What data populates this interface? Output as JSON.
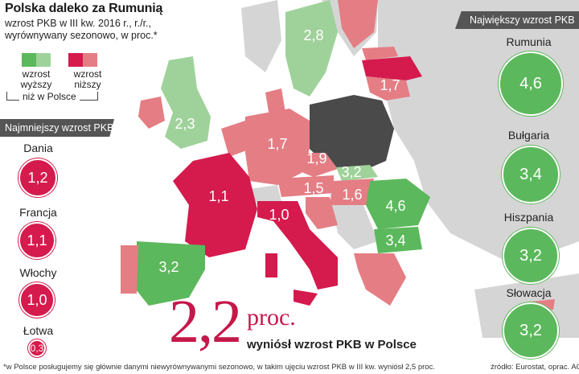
{
  "title": "Polska daleko za Rumunią",
  "subtitle": "wzrost PKB w III kw. 2016 r., r./r., wyrównywany sezonowo, w proc.*",
  "legend": {
    "higher": "wzrost wyższy",
    "lower": "wzrost niższy",
    "caption": "niż w Polsce",
    "colors": {
      "higher_dark": "#5cb85c",
      "higher_light": "#9fd29a",
      "lower_dark": "#d51a4d",
      "lower_light": "#e57d84",
      "poland": "#4a4a4a"
    }
  },
  "smallest": {
    "heading": "Najmniejszy wzrost PKB",
    "items": [
      {
        "country": "Dania",
        "value": "1,2"
      },
      {
        "country": "Francja",
        "value": "1,1"
      },
      {
        "country": "Włochy",
        "value": "1,0"
      },
      {
        "country": "Łotwa",
        "value": "0,3"
      }
    ]
  },
  "largest": {
    "heading": "Największy wzrost PKB",
    "items": [
      {
        "country": "Rumunia",
        "value": "4,6"
      },
      {
        "country": "Bułgaria",
        "value": "3,4"
      },
      {
        "country": "Hiszpania",
        "value": "3,2"
      },
      {
        "country": "Słowacja",
        "value": "3,2"
      }
    ]
  },
  "map_labels": {
    "sweden": "2,8",
    "uk": "2,3",
    "germany": "1,7",
    "czechia": "1,9",
    "austria": "1,5",
    "slovakia": "3,2",
    "hungary": "1,6",
    "france": "1,1",
    "italy": "1,0",
    "spain": "3,2",
    "romania": "4,6",
    "bulgaria": "3,4",
    "lithuania": "1,7"
  },
  "poland": {
    "value": "2,2",
    "unit": "proc.",
    "description": "wyniósł wzrost PKB w Polsce"
  },
  "footnote": "*w Polsce posługujemy się głównie danymi niewyrównywanymi sezonowo, w takim ujęciu wzrost PKB w III kw. wyniósł 2,5 proc.",
  "source": "źródło: Eurostat, oprac. ACW"
}
